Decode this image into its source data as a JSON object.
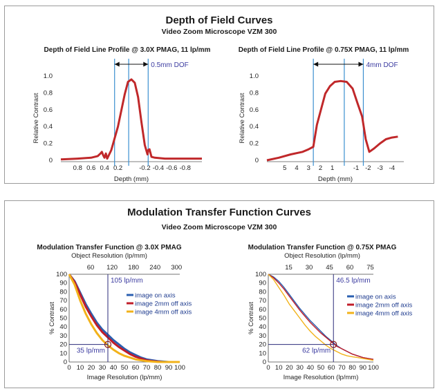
{
  "panels": [
    {
      "title": "Depth of Field Curves",
      "subtitle": "Video Zoom Microscope VZM 300"
    },
    {
      "title": "Modulation Transfer Function Curves",
      "subtitle": "Video Zoom Microscope VZM 300"
    }
  ],
  "colors": {
    "dof_curve": "#c0282a",
    "guide_line": "#3a8fd0",
    "annotation": "#3b3ba0",
    "on_axis": "#2a5fb0",
    "off2mm": "#c01d2a",
    "off4mm": "#f2b21a"
  },
  "chart_data": [
    {
      "type": "line",
      "title": "Depth of Field Line Profile @ 3.0X PMAG, 11 lp/mm",
      "xlabel": "Depth (mm)",
      "ylabel": "Relative Contrast",
      "x_ticks": [
        "0.8",
        "0.6",
        "0.4",
        "0.2",
        "-0.2",
        "-0.4",
        "-0.6",
        "-0.8"
      ],
      "y_ticks": [
        "0",
        "0.2",
        "0.4",
        "0.6",
        "0.8",
        "1.0"
      ],
      "xlim": [
        1.05,
        -1.05
      ],
      "ylim": [
        0,
        1.0
      ],
      "x_reversed": true,
      "annotation": {
        "label": "0.5mm DOF",
        "from": 0.25,
        "to": -0.25
      },
      "guide_lines": [
        0.25,
        0.04,
        -0.25
      ],
      "series": [
        {
          "x": [
            1.05,
            0.8,
            0.6,
            0.5,
            0.46,
            0.44,
            0.42,
            0.4,
            0.38,
            0.36,
            0.3,
            0.2,
            0.1,
            0.05,
            0.0,
            -0.05,
            -0.1,
            -0.15,
            -0.2,
            -0.24,
            -0.25,
            -0.27,
            -0.3,
            -0.35,
            -0.5,
            -0.8,
            -1.05
          ],
          "y": [
            0.01,
            0.02,
            0.03,
            0.05,
            0.08,
            0.1,
            0.06,
            0.03,
            0.08,
            0.02,
            0.12,
            0.4,
            0.78,
            0.93,
            0.96,
            0.92,
            0.75,
            0.45,
            0.18,
            0.07,
            0.12,
            0.13,
            0.04,
            0.03,
            0.02,
            0.02,
            0.02
          ]
        }
      ]
    },
    {
      "type": "line",
      "title": "Depth of Field Line Profile @ 0.75X PMAG, 11 lp/mm",
      "xlabel": "Depth (mm)",
      "ylabel": "Relative Contrast",
      "x_ticks": [
        "5",
        "4",
        "3",
        "2",
        "1",
        "-1",
        "-2",
        "-3",
        "-4"
      ],
      "y_ticks": [
        "0",
        "0.2",
        "0.4",
        "0.6",
        "0.8",
        "1.0"
      ],
      "xlim": [
        6.5,
        -5.0
      ],
      "ylim": [
        0,
        1.0
      ],
      "x_reversed": true,
      "annotation": {
        "label": "4mm DOF",
        "from": 2.6,
        "to": -1.6
      },
      "guide_lines": [
        2.6,
        0.0,
        -1.6
      ],
      "series": [
        {
          "x": [
            6.5,
            5.5,
            4.5,
            3.5,
            3.0,
            2.6,
            2.3,
            2.0,
            1.6,
            1.2,
            0.8,
            0.3,
            -0.2,
            -0.7,
            -1.1,
            -1.5,
            -1.8,
            -2.1,
            -2.5,
            -3.0,
            -3.5,
            -4.0,
            -4.5
          ],
          "y": [
            0.0,
            0.03,
            0.07,
            0.1,
            0.13,
            0.16,
            0.42,
            0.58,
            0.79,
            0.88,
            0.93,
            0.94,
            0.93,
            0.85,
            0.68,
            0.52,
            0.25,
            0.1,
            0.14,
            0.2,
            0.25,
            0.27,
            0.28
          ]
        }
      ]
    },
    {
      "type": "line",
      "title": "Modulation Transfer Function @ 3.0X PMAG",
      "xlabel": "Image Resolution (lp/mm)",
      "ylabel": "% Contrast",
      "secondary_xlabel": "Object Resolution (lp/mm)",
      "secondary_ticks": [
        "60",
        "120",
        "180",
        "240",
        "300"
      ],
      "x_ticks": [
        "0",
        "10",
        "20",
        "30",
        "40",
        "50",
        "60",
        "70",
        "80",
        "90",
        "100"
      ],
      "y_ticks": [
        "0",
        "10",
        "20",
        "30",
        "40",
        "50",
        "60",
        "70",
        "80",
        "90",
        "100"
      ],
      "xlim": [
        0,
        100
      ],
      "ylim": [
        0,
        100
      ],
      "legend": "right",
      "annotations": [
        {
          "label": "105 lp/mm",
          "x": 35
        },
        {
          "label": "35 lp/mm",
          "y": 20
        }
      ],
      "marker": {
        "x": 35,
        "y": 20
      },
      "series": [
        {
          "name": "image on axis",
          "x": [
            0,
            5,
            10,
            15,
            20,
            25,
            30,
            35,
            40,
            45,
            50,
            55,
            60,
            65,
            70,
            75,
            80,
            85,
            90,
            95,
            100
          ],
          "y": [
            100,
            92,
            79,
            66,
            55,
            45,
            37,
            31,
            25,
            20,
            15,
            11,
            8,
            5,
            3,
            2,
            1,
            0.5,
            0,
            0,
            0
          ]
        },
        {
          "name": "image 2mm off axis",
          "x": [
            0,
            5,
            10,
            15,
            20,
            25,
            30,
            35,
            40,
            45,
            50,
            55,
            60,
            65,
            70,
            75,
            80,
            85,
            90,
            95,
            100
          ],
          "y": [
            100,
            91,
            77,
            63,
            52,
            42,
            34,
            28,
            22,
            17,
            13,
            9,
            6,
            4,
            2,
            1,
            0.5,
            0,
            0,
            0,
            0
          ]
        },
        {
          "name": "image 4mm off axis",
          "x": [
            0,
            5,
            10,
            15,
            20,
            25,
            30,
            35,
            40,
            45,
            50,
            55,
            60,
            65,
            70,
            75,
            80,
            85,
            90,
            95,
            100
          ],
          "y": [
            100,
            88,
            70,
            55,
            43,
            33,
            25,
            19,
            14,
            10,
            7,
            5,
            3,
            2,
            1,
            0.5,
            0,
            0,
            0,
            0,
            0
          ]
        }
      ]
    },
    {
      "type": "line",
      "title": "Modulation Transfer Function @ 0.75X PMAG",
      "xlabel": "Image Resolution (lp/mm)",
      "ylabel": "% Contrast",
      "secondary_xlabel": "Object Resolution (lp/mm)",
      "secondary_ticks": [
        "15",
        "30",
        "45",
        "60",
        "75"
      ],
      "x_ticks": [
        "0",
        "10",
        "20",
        "30",
        "40",
        "50",
        "60",
        "70",
        "80",
        "90",
        "100"
      ],
      "y_ticks": [
        "0",
        "10",
        "20",
        "30",
        "40",
        "50",
        "60",
        "70",
        "80",
        "90",
        "100"
      ],
      "xlim": [
        0,
        100
      ],
      "ylim": [
        0,
        100
      ],
      "legend": "right",
      "annotations": [
        {
          "label": "46.5 lp/mm",
          "x": 62
        },
        {
          "label": "62 lp/mm",
          "y": 20
        }
      ],
      "marker": {
        "x": 62,
        "y": 20
      },
      "series": [
        {
          "name": "image on axis",
          "x": [
            0,
            5,
            10,
            15,
            20,
            25,
            30,
            35,
            40,
            45,
            50,
            55,
            60,
            65,
            70,
            75,
            80,
            85,
            90,
            95,
            100
          ],
          "y": [
            100,
            97,
            92,
            85,
            77,
            69,
            61,
            54,
            47,
            41,
            35,
            29,
            24,
            19,
            15,
            12,
            9,
            7,
            5,
            4,
            3
          ]
        },
        {
          "name": "image 2mm off axis",
          "x": [
            0,
            5,
            10,
            15,
            20,
            25,
            30,
            35,
            40,
            45,
            50,
            55,
            60,
            65,
            70,
            75,
            80,
            85,
            90,
            95,
            100
          ],
          "y": [
            100,
            96,
            90,
            83,
            75,
            67,
            59,
            52,
            45,
            39,
            33,
            28,
            23,
            18,
            15,
            12,
            9,
            7,
            5,
            4,
            3
          ]
        },
        {
          "name": "image 4mm off axis",
          "x": [
            0,
            5,
            10,
            15,
            20,
            25,
            30,
            35,
            40,
            45,
            50,
            55,
            60,
            65,
            70,
            75,
            80,
            85,
            90,
            95,
            100
          ],
          "y": [
            100,
            94,
            85,
            76,
            66,
            58,
            50,
            42,
            35,
            29,
            24,
            19,
            15,
            12,
            9,
            7,
            6,
            5,
            4,
            3,
            2
          ]
        }
      ]
    }
  ]
}
